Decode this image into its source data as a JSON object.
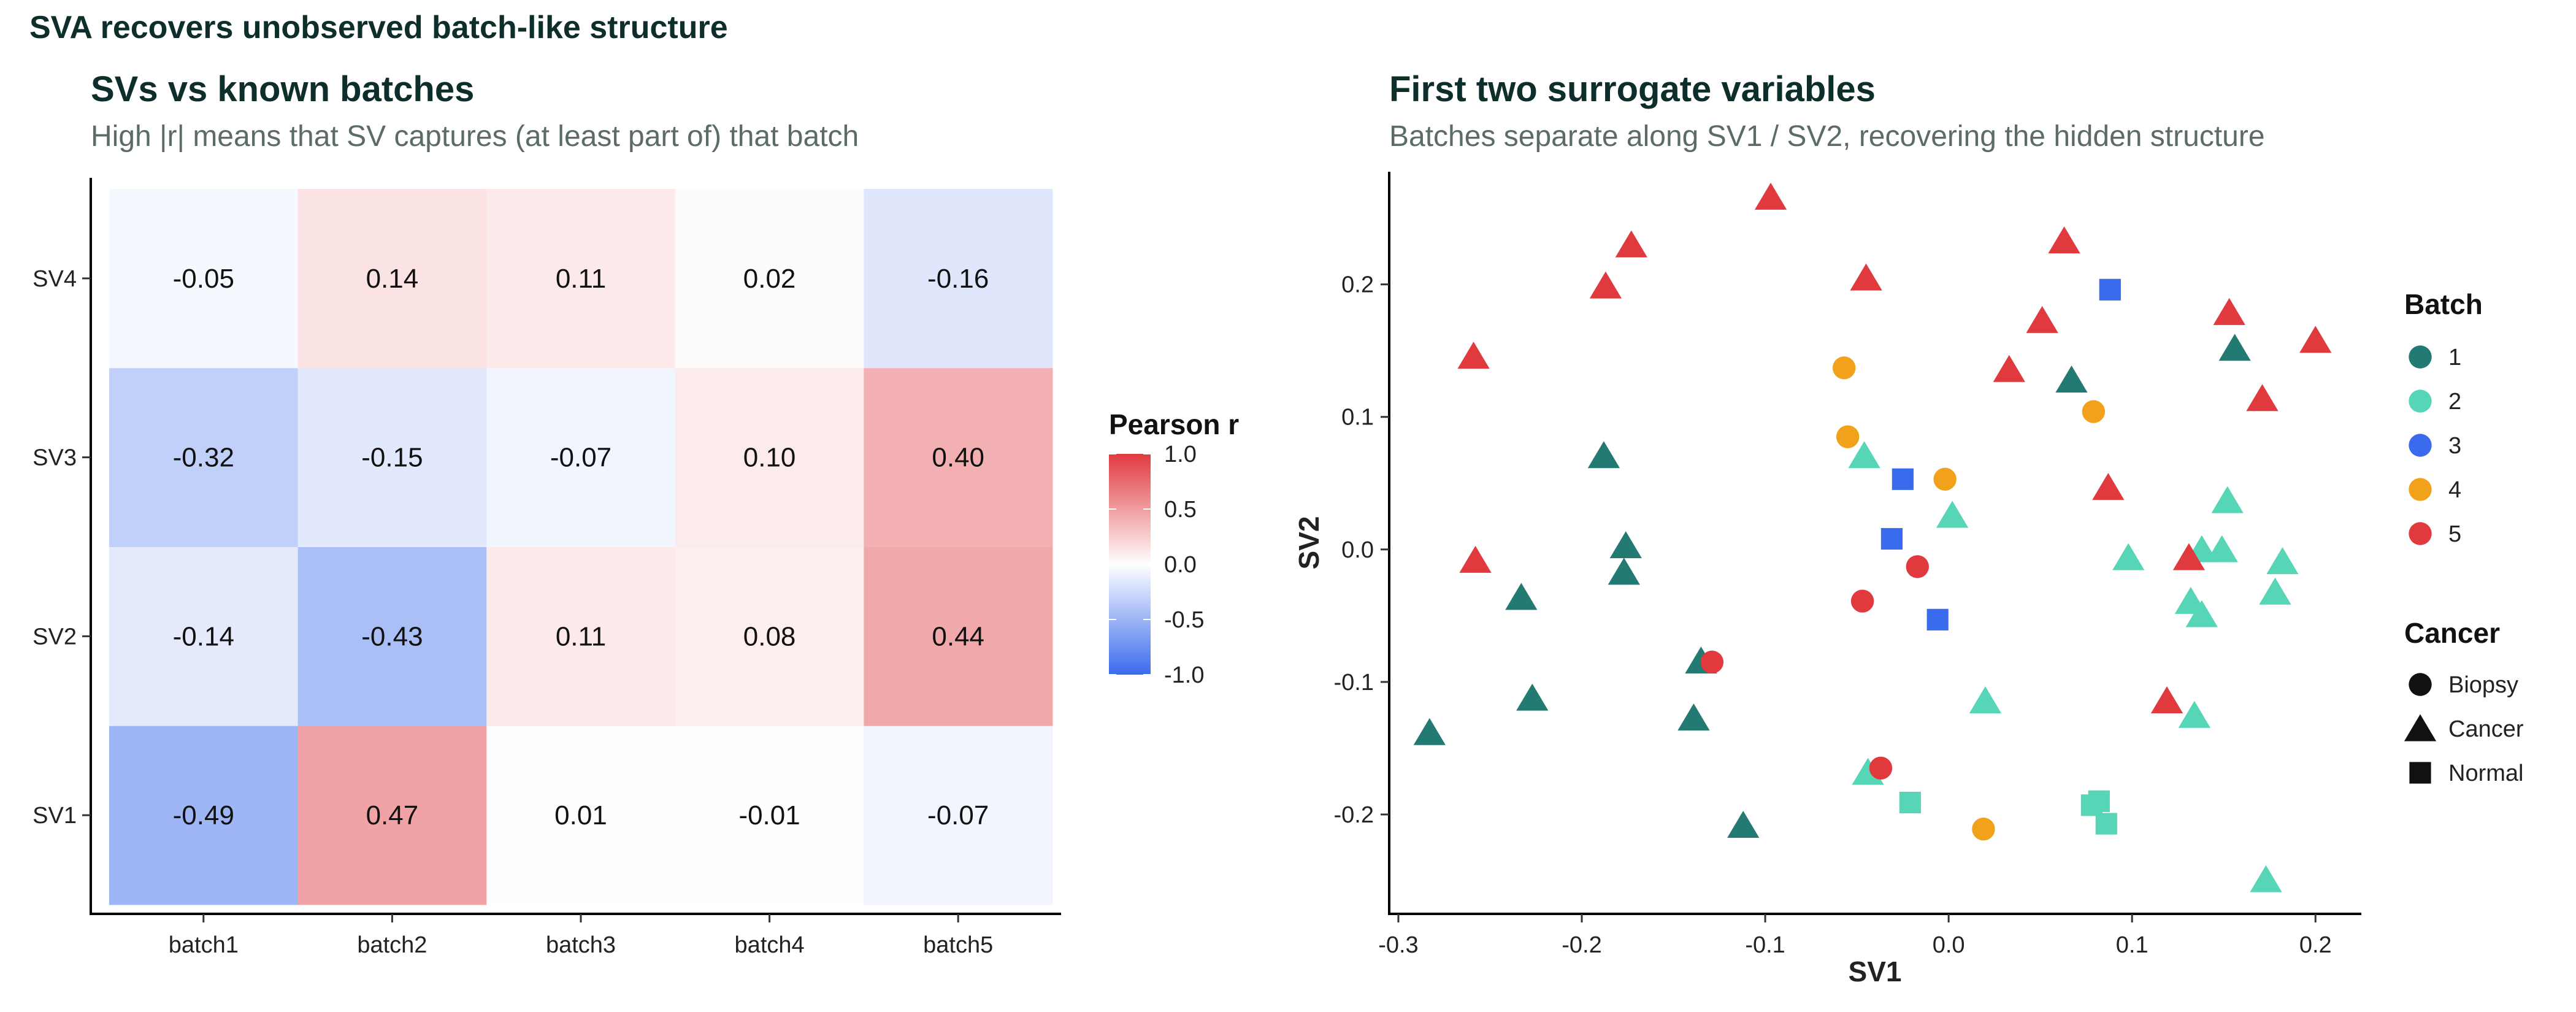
{
  "page_title": "SVA recovers unobserved batch-like structure",
  "colors": {
    "neg": "#3b6bed",
    "mid": "#ffffff",
    "pos": "#e03a3e",
    "batch": {
      "1": "#237a72",
      "2": "#56d6b6",
      "3": "#3b6bed",
      "4": "#f2a11b",
      "5": "#e03a3e"
    }
  },
  "chart_data": [
    {
      "type": "heatmap",
      "title": "SVs vs known batches",
      "subtitle": "High |r| means that SV captures (at least part of) that batch",
      "x_categories": [
        "batch1",
        "batch2",
        "batch3",
        "batch4",
        "batch5"
      ],
      "y_categories": [
        "SV1",
        "SV2",
        "SV3",
        "SV4"
      ],
      "values": [
        [
          -0.49,
          0.47,
          0.01,
          -0.01,
          -0.07
        ],
        [
          -0.14,
          -0.43,
          0.11,
          0.08,
          0.44
        ],
        [
          -0.32,
          -0.15,
          -0.07,
          0.1,
          0.4
        ],
        [
          -0.05,
          0.14,
          0.11,
          0.02,
          -0.16
        ]
      ],
      "cell_labels": [
        [
          "-0.49",
          "0.47",
          "0.01",
          "-0.01",
          "-0.07"
        ],
        [
          "-0.14",
          "-0.43",
          "0.11",
          "0.08",
          "0.44"
        ],
        [
          "-0.32",
          "-0.15",
          "-0.07",
          "0.10",
          "0.40"
        ],
        [
          "-0.05",
          "0.14",
          "0.11",
          "0.02",
          "-0.16"
        ]
      ],
      "color_range": [
        -1,
        1
      ],
      "legend": {
        "title": "Pearson r",
        "ticks": [
          1.0,
          0.5,
          0.0,
          -0.5,
          -1.0
        ],
        "tick_labels": [
          "1.0",
          "0.5",
          "0.0",
          "-0.5",
          "-1.0"
        ],
        "placement": "right"
      }
    },
    {
      "type": "scatter",
      "title": "First two surrogate variables",
      "subtitle": "Batches separate along SV1 / SV2, recovering the hidden structure",
      "xlabel": "SV1",
      "ylabel": "SV2",
      "xlim": [
        -0.305,
        0.225
      ],
      "ylim": [
        -0.275,
        0.285
      ],
      "x_ticks": [
        -0.3,
        -0.2,
        -0.1,
        0.0,
        0.1,
        0.2
      ],
      "x_tick_labels": [
        "-0.3",
        "-0.2",
        "-0.1",
        "0.0",
        "0.1",
        "0.2"
      ],
      "y_ticks": [
        -0.2,
        -0.1,
        0.0,
        0.1,
        0.2
      ],
      "y_tick_labels": [
        "-0.2",
        "-0.1",
        "0.0",
        "0.1",
        "0.2"
      ],
      "batch_legend": {
        "title": "Batch",
        "labels": [
          "1",
          "2",
          "3",
          "4",
          "5"
        ],
        "placement": "right"
      },
      "shape_legend": {
        "title": "Cancer",
        "labels": [
          "Biopsy",
          "Cancer",
          "Normal"
        ],
        "shapes": [
          "circle",
          "triangle",
          "square"
        ],
        "placement": "right"
      },
      "points": [
        {
          "x": -0.283,
          "y": -0.14,
          "batch": "1",
          "shape": "triangle"
        },
        {
          "x": -0.233,
          "y": -0.038,
          "batch": "1",
          "shape": "triangle"
        },
        {
          "x": -0.227,
          "y": -0.114,
          "batch": "1",
          "shape": "triangle"
        },
        {
          "x": -0.188,
          "y": 0.069,
          "batch": "1",
          "shape": "triangle"
        },
        {
          "x": -0.176,
          "y": 0.001,
          "batch": "1",
          "shape": "triangle"
        },
        {
          "x": -0.177,
          "y": -0.019,
          "batch": "1",
          "shape": "triangle"
        },
        {
          "x": -0.135,
          "y": -0.086,
          "batch": "1",
          "shape": "triangle"
        },
        {
          "x": -0.139,
          "y": -0.129,
          "batch": "1",
          "shape": "triangle"
        },
        {
          "x": -0.112,
          "y": -0.21,
          "batch": "1",
          "shape": "triangle"
        },
        {
          "x": 0.067,
          "y": 0.126,
          "batch": "1",
          "shape": "triangle"
        },
        {
          "x": 0.156,
          "y": 0.15,
          "batch": "1",
          "shape": "triangle"
        },
        {
          "x": -0.046,
          "y": 0.069,
          "batch": "2",
          "shape": "triangle"
        },
        {
          "x": 0.002,
          "y": 0.024,
          "batch": "2",
          "shape": "triangle"
        },
        {
          "x": 0.02,
          "y": -0.116,
          "batch": "2",
          "shape": "triangle"
        },
        {
          "x": -0.021,
          "y": -0.191,
          "batch": "2",
          "shape": "square"
        },
        {
          "x": -0.044,
          "y": -0.17,
          "batch": "2",
          "shape": "triangle"
        },
        {
          "x": 0.078,
          "y": -0.193,
          "batch": "2",
          "shape": "square"
        },
        {
          "x": 0.082,
          "y": -0.19,
          "batch": "2",
          "shape": "square"
        },
        {
          "x": 0.086,
          "y": -0.207,
          "batch": "2",
          "shape": "square"
        },
        {
          "x": 0.098,
          "y": -0.008,
          "batch": "2",
          "shape": "triangle"
        },
        {
          "x": 0.132,
          "y": -0.041,
          "batch": "2",
          "shape": "triangle"
        },
        {
          "x": 0.134,
          "y": -0.127,
          "batch": "2",
          "shape": "triangle"
        },
        {
          "x": 0.138,
          "y": -0.002,
          "batch": "2",
          "shape": "triangle"
        },
        {
          "x": 0.138,
          "y": -0.051,
          "batch": "2",
          "shape": "triangle"
        },
        {
          "x": 0.149,
          "y": -0.002,
          "batch": "2",
          "shape": "triangle"
        },
        {
          "x": 0.152,
          "y": 0.035,
          "batch": "2",
          "shape": "triangle"
        },
        {
          "x": 0.178,
          "y": -0.034,
          "batch": "2",
          "shape": "triangle"
        },
        {
          "x": 0.182,
          "y": -0.011,
          "batch": "2",
          "shape": "triangle"
        },
        {
          "x": 0.173,
          "y": -0.251,
          "batch": "2",
          "shape": "triangle"
        },
        {
          "x": -0.025,
          "y": 0.053,
          "batch": "3",
          "shape": "square"
        },
        {
          "x": -0.031,
          "y": 0.008,
          "batch": "3",
          "shape": "square"
        },
        {
          "x": -0.006,
          "y": -0.053,
          "batch": "3",
          "shape": "square"
        },
        {
          "x": 0.088,
          "y": 0.196,
          "batch": "3",
          "shape": "square"
        },
        {
          "x": -0.057,
          "y": 0.137,
          "batch": "4",
          "shape": "circle"
        },
        {
          "x": -0.055,
          "y": 0.085,
          "batch": "4",
          "shape": "circle"
        },
        {
          "x": -0.002,
          "y": 0.053,
          "batch": "4",
          "shape": "circle"
        },
        {
          "x": 0.079,
          "y": 0.104,
          "batch": "4",
          "shape": "circle"
        },
        {
          "x": 0.019,
          "y": -0.211,
          "batch": "4",
          "shape": "circle"
        },
        {
          "x": -0.259,
          "y": 0.144,
          "batch": "5",
          "shape": "triangle"
        },
        {
          "x": -0.258,
          "y": -0.01,
          "batch": "5",
          "shape": "triangle"
        },
        {
          "x": -0.187,
          "y": 0.197,
          "batch": "5",
          "shape": "triangle"
        },
        {
          "x": -0.173,
          "y": 0.228,
          "batch": "5",
          "shape": "triangle"
        },
        {
          "x": -0.097,
          "y": 0.264,
          "batch": "5",
          "shape": "triangle"
        },
        {
          "x": -0.045,
          "y": 0.203,
          "batch": "5",
          "shape": "triangle"
        },
        {
          "x": 0.033,
          "y": 0.134,
          "batch": "5",
          "shape": "triangle"
        },
        {
          "x": 0.051,
          "y": 0.171,
          "batch": "5",
          "shape": "triangle"
        },
        {
          "x": 0.063,
          "y": 0.231,
          "batch": "5",
          "shape": "triangle"
        },
        {
          "x": 0.087,
          "y": 0.045,
          "batch": "5",
          "shape": "triangle"
        },
        {
          "x": 0.131,
          "y": -0.008,
          "batch": "5",
          "shape": "triangle"
        },
        {
          "x": 0.119,
          "y": -0.116,
          "batch": "5",
          "shape": "triangle"
        },
        {
          "x": 0.153,
          "y": 0.177,
          "batch": "5",
          "shape": "triangle"
        },
        {
          "x": 0.171,
          "y": 0.112,
          "batch": "5",
          "shape": "triangle"
        },
        {
          "x": 0.2,
          "y": 0.156,
          "batch": "5",
          "shape": "triangle"
        },
        {
          "x": -0.129,
          "y": -0.085,
          "batch": "5",
          "shape": "circle"
        },
        {
          "x": -0.047,
          "y": -0.039,
          "batch": "5",
          "shape": "circle"
        },
        {
          "x": -0.017,
          "y": -0.013,
          "batch": "5",
          "shape": "circle"
        },
        {
          "x": -0.037,
          "y": -0.165,
          "batch": "5",
          "shape": "circle"
        }
      ]
    }
  ]
}
